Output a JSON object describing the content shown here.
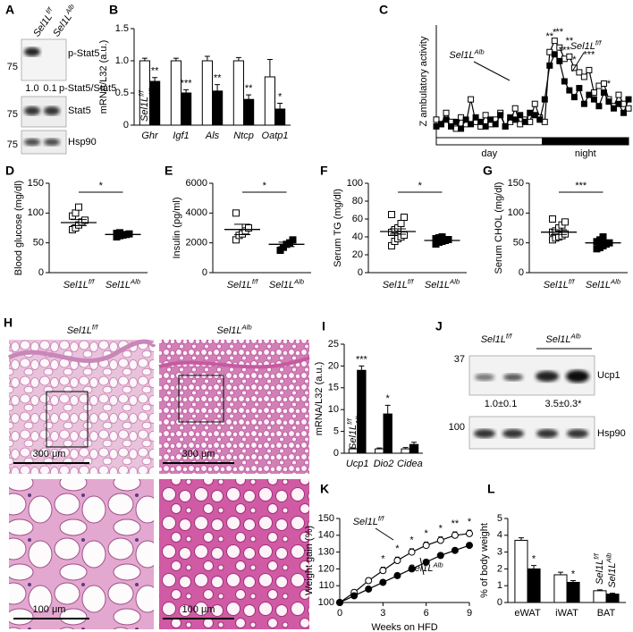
{
  "blot_A": {
    "panel": "A",
    "lanes": [
      {
        "name": "Sel1L",
        "sup": "f/f"
      },
      {
        "name": "Sel1L",
        "sup": "Alb"
      }
    ],
    "markers": [
      75,
      75,
      75
    ],
    "bands": [
      "p-Stat5",
      "p-Stat5/Stat5",
      "Stat5",
      "Hsp90"
    ],
    "ratios": [
      "1.0",
      "0.1"
    ]
  },
  "histology_H": {
    "panel": "H",
    "columns": [
      {
        "name": "Sel1L",
        "sup": "f/f"
      },
      {
        "name": "Sel1L",
        "sup": "Alb"
      }
    ],
    "scale_bars": [
      "300 μm",
      "300 μm",
      "100 μm",
      "100 μm"
    ]
  },
  "blot_J": {
    "panel": "J",
    "lanes": [
      {
        "name": "Sel1L",
        "sup": "f/f"
      },
      {
        "name": "Sel1L",
        "sup": "Alb"
      }
    ],
    "markers": [
      37,
      100
    ],
    "bands": [
      "Ucp1",
      "Hsp90"
    ],
    "quantification": [
      "1.0±0.1",
      "3.5±0.3*"
    ]
  },
  "chart_data": [
    {
      "panel": "B",
      "type": "bar",
      "ylabel": "mRNA/L32 (a.u.)",
      "categories": [
        "Ghr",
        "Igf1",
        "Als",
        "Ntcp",
        "Oatp1"
      ],
      "italic_categories": true,
      "legend": "inside",
      "series": [
        {
          "name": "Sel1L",
          "sup": "f/f",
          "color": "#ffffff",
          "values": [
            1,
            1,
            1,
            1,
            0.75
          ],
          "errors": [
            0.04,
            0.04,
            0.07,
            0.05,
            0.27
          ]
        },
        {
          "name": "Sel1L",
          "sup": "Alb",
          "color": "#000000",
          "values": [
            0.68,
            0.5,
            0.53,
            0.4,
            0.25
          ],
          "errors": [
            0.06,
            0.05,
            0.1,
            0.07,
            0.09
          ],
          "significance": [
            "**",
            "***",
            "**",
            "**",
            "*"
          ]
        }
      ],
      "ylim": [
        0,
        1.5
      ],
      "yticks": [
        0,
        0.5,
        {
          "value": 1,
          "label": "1.0"
        },
        1.5
      ]
    },
    {
      "panel": "C",
      "type": "line",
      "ylabel": "Z ambulatory activity",
      "ylim": [
        -0.5,
        4.5
      ],
      "periods": [
        {
          "label": "day",
          "from": 0,
          "to": 21,
          "color": "#ffffff"
        },
        {
          "label": "night",
          "from": 22,
          "to": 39,
          "color": "#000000"
        }
      ],
      "series": [
        {
          "name": "Sel1L",
          "sup": "f/f",
          "color": "#ffffff",
          "marker": "square",
          "values": [
            0.3,
            0.1,
            0.6,
            0.2,
            -0.1,
            0.4,
            0.1,
            1.2,
            0.2,
            0.0,
            0.5,
            0.1,
            0.3,
            0.6,
            0.0,
            0.2,
            0.8,
            0.1,
            0.3,
            0.2,
            1.0,
            0.4,
            0.2,
            3.3,
            3.8,
            3.5,
            3.0,
            3.1,
            2.6,
            2.4,
            2.2,
            2.5,
            1.5,
            1.8,
            1.9,
            1.2,
            0.9,
            1.4,
            1.0,
            0.8
          ],
          "significance": [
            null,
            null,
            null,
            null,
            null,
            null,
            null,
            null,
            null,
            null,
            null,
            null,
            null,
            null,
            null,
            null,
            null,
            null,
            null,
            null,
            null,
            null,
            null,
            "**",
            "*",
            "**",
            "***",
            "**",
            "*",
            null,
            null,
            "***",
            null,
            null,
            null,
            "*",
            null,
            null,
            null,
            null
          ]
        },
        {
          "name": "Sel1L",
          "sup": "Alb",
          "color": "#000000",
          "marker": "square",
          "values": [
            0.0,
            0.1,
            0.3,
            0.0,
            0.2,
            -0.1,
            0.3,
            0.1,
            0.4,
            0.2,
            0.0,
            0.3,
            0.1,
            0.5,
            0.0,
            0.4,
            0.3,
            0.5,
            0.2,
            0.6,
            0.5,
            0.3,
            1.2,
            2.7,
            3.2,
            2.9,
            2.0,
            1.6,
            1.3,
            1.7,
            1.0,
            1.4,
            1.2,
            0.9,
            1.5,
            1.1,
            0.8,
            1.0,
            0.6,
            1.2
          ]
        }
      ]
    },
    {
      "panel": "D",
      "type": "strip",
      "ylabel": "Blood glucose (mg/dl)",
      "ylim": [
        0,
        150
      ],
      "yticks": [
        0,
        50,
        100,
        150
      ],
      "significance": "*",
      "series": [
        {
          "name": "Sel1L",
          "sup": "f/f",
          "color": "#ffffff",
          "values": [
            72,
            75,
            80,
            85,
            88,
            95,
            100,
            110
          ],
          "mean": 84,
          "sem": 5
        },
        {
          "name": "Sel1L",
          "sup": "Alb",
          "color": "#000000",
          "values": [
            60,
            62,
            63,
            64,
            65,
            66,
            67
          ],
          "mean": 64,
          "sem": 2
        }
      ]
    },
    {
      "panel": "E",
      "type": "strip",
      "ylabel": "Insulin (pg/ml)",
      "ylim": [
        0,
        6000
      ],
      "yticks": [
        0,
        2000,
        4000,
        6000
      ],
      "significance": "*",
      "series": [
        {
          "name": "Sel1L",
          "sup": "f/f",
          "color": "#ffffff",
          "values": [
            2200,
            2500,
            2600,
            2800,
            3000,
            4000
          ],
          "mean": 2900,
          "sem": 350
        },
        {
          "name": "Sel1L",
          "sup": "Alb",
          "color": "#000000",
          "values": [
            1500,
            1700,
            1900,
            2000,
            2200
          ],
          "mean": 1900,
          "sem": 150
        }
      ]
    },
    {
      "panel": "F",
      "type": "strip",
      "ylabel": "Serum TG (mg/dl)",
      "ylim": [
        0,
        100
      ],
      "yticks": [
        0,
        20,
        40,
        60,
        80,
        100
      ],
      "significance": "*",
      "series": [
        {
          "name": "Sel1L",
          "sup": "f/f",
          "color": "#ffffff",
          "values": [
            30,
            35,
            38,
            40,
            42,
            45,
            48,
            50,
            55,
            62,
            65
          ],
          "mean": 46,
          "sem": 3
        },
        {
          "name": "Sel1L",
          "sup": "Alb",
          "color": "#000000",
          "values": [
            32,
            34,
            35,
            36,
            37,
            38,
            39,
            40
          ],
          "mean": 36,
          "sem": 1
        }
      ]
    },
    {
      "panel": "G",
      "type": "strip",
      "ylabel": "Serum CHOL (mg/dl)",
      "ylim": [
        0,
        150
      ],
      "yticks": [
        0,
        50,
        100,
        150
      ],
      "significance": "***",
      "series": [
        {
          "name": "Sel1L",
          "sup": "f/f",
          "color": "#ffffff",
          "values": [
            55,
            58,
            60,
            62,
            65,
            68,
            70,
            75,
            80,
            85,
            90
          ],
          "mean": 68,
          "sem": 4
        },
        {
          "name": "Sel1L",
          "sup": "Alb",
          "color": "#000000",
          "values": [
            40,
            42,
            45,
            48,
            50,
            52,
            55,
            60
          ],
          "mean": 50,
          "sem": 2
        }
      ]
    },
    {
      "panel": "I",
      "type": "bar",
      "ylabel": "mRNA/L32 (a.u.)",
      "categories": [
        "Ucp1",
        "Dio2",
        "Cidea"
      ],
      "italic_categories": true,
      "legend": "inside",
      "series": [
        {
          "name": "Sel1L",
          "sup": "f/f",
          "color": "#ffffff",
          "values": [
            1,
            1,
            1
          ],
          "errors": [
            0.2,
            0.2,
            0.3
          ]
        },
        {
          "name": "Sel1L",
          "sup": "Alb",
          "color": "#000000",
          "values": [
            19,
            9,
            2
          ],
          "errors": [
            1,
            2,
            0.5
          ],
          "significance": [
            "***",
            "*",
            null
          ]
        }
      ],
      "ylim": [
        0,
        25
      ],
      "yticks": [
        0,
        5,
        10,
        15,
        20,
        25
      ]
    },
    {
      "panel": "K",
      "type": "line",
      "ylabel": "Weight gain (%)",
      "xlabel": "Weeks on HFD",
      "x": [
        0,
        1,
        2,
        3,
        4,
        5,
        6,
        7,
        8,
        9
      ],
      "xlim": [
        0,
        9
      ],
      "xticks": [
        0,
        3,
        6,
        9
      ],
      "ylim": [
        100,
        150
      ],
      "yticks": [
        100,
        110,
        120,
        130,
        140,
        150
      ],
      "series": [
        {
          "name": "Sel1L",
          "sup": "f/f",
          "color": "#ffffff",
          "marker": "circle",
          "values": [
            100,
            106,
            113,
            119,
            125,
            130,
            134,
            137,
            140,
            141
          ],
          "errors": [
            0,
            1,
            1.5,
            2,
            2,
            2,
            2,
            2,
            2,
            2
          ],
          "significance": [
            null,
            null,
            null,
            "*",
            "*",
            "*",
            "*",
            "*",
            "**",
            "*"
          ]
        },
        {
          "name": "Sel1L",
          "sup": "Alb",
          "color": "#000000",
          "marker": "circle",
          "values": [
            100,
            104,
            108,
            112,
            116,
            120,
            124,
            128,
            131,
            134
          ],
          "errors": [
            0,
            1,
            1,
            1,
            1,
            1,
            1,
            1,
            1,
            1
          ]
        }
      ]
    },
    {
      "panel": "L",
      "type": "bar",
      "ylabel": "% of body weight",
      "categories": [
        "eWAT",
        "iWAT",
        "BAT"
      ],
      "italic_categories": false,
      "legend": "above-last",
      "series": [
        {
          "name": "Sel1L",
          "sup": "f/f",
          "color": "#ffffff",
          "values": [
            3.7,
            1.65,
            0.7
          ],
          "errors": [
            0.15,
            0.15,
            0.05
          ]
        },
        {
          "name": "Sel1L",
          "sup": "Alb",
          "color": "#000000",
          "values": [
            2.0,
            1.2,
            0.5
          ],
          "errors": [
            0.2,
            0.1,
            0.05
          ],
          "significance": [
            "*",
            "*",
            null
          ]
        }
      ],
      "ylim": [
        0,
        5
      ],
      "yticks": [
        0,
        1,
        2,
        3,
        4,
        5
      ]
    }
  ]
}
